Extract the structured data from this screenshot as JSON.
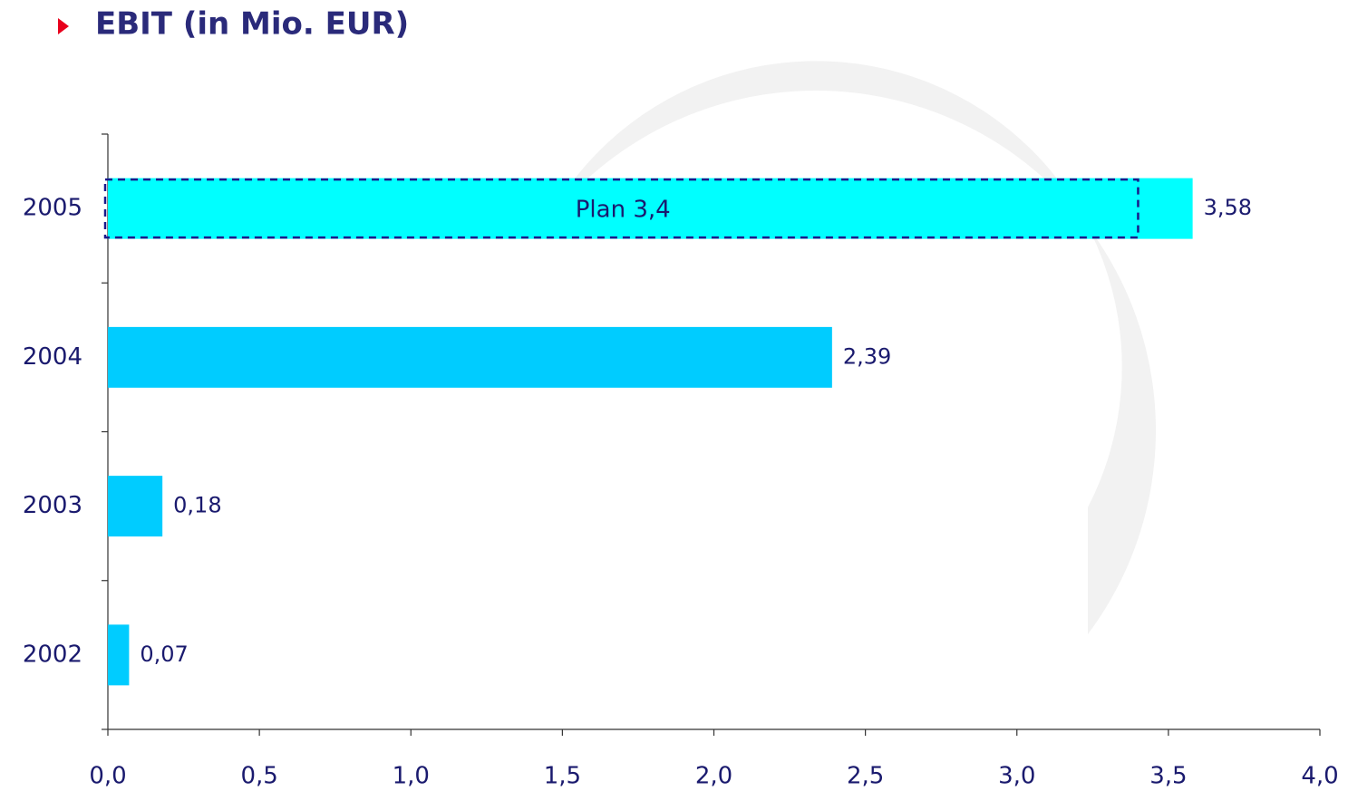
{
  "chart_data": {
    "type": "hbar",
    "title": "EBIT (in Mio. EUR)",
    "categories": [
      "2005",
      "2004",
      "2003",
      "2002"
    ],
    "values": [
      3.58,
      2.39,
      0.18,
      0.07
    ],
    "value_labels": [
      "3,58",
      "2,39",
      "0,18",
      "0,07"
    ],
    "colors": [
      "#00ffff",
      "#00ccff",
      "#00ccff",
      "#00ccff"
    ],
    "xlim": [
      0,
      4
    ],
    "xticks": [
      {
        "value": 0,
        "label": "0,0"
      },
      {
        "value": 0.5,
        "label": "0,5"
      },
      {
        "value": 1,
        "label": "1,0"
      },
      {
        "value": 1.5,
        "label": "1,5"
      },
      {
        "value": 2,
        "label": "2,0"
      },
      {
        "value": 2.5,
        "label": "2,5"
      },
      {
        "value": 3,
        "label": "3,0"
      },
      {
        "value": 3.5,
        "label": "3,5"
      },
      {
        "value": 4,
        "label": "4,0"
      }
    ],
    "plan": {
      "label": "Plan 3,4",
      "value": 3.4,
      "category": 0
    }
  }
}
